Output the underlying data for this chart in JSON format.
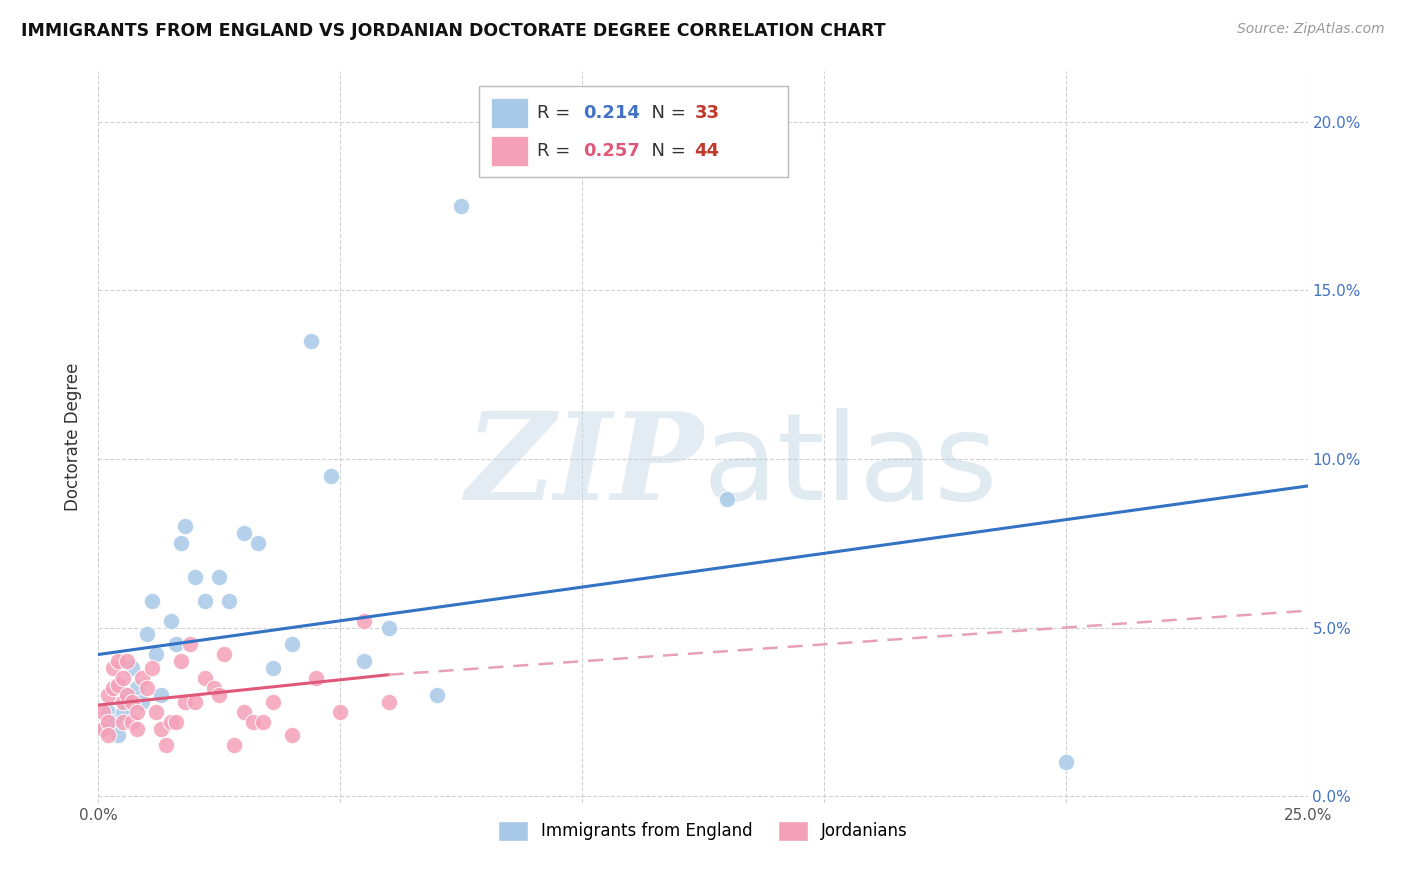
{
  "title": "IMMIGRANTS FROM ENGLAND VS JORDANIAN DOCTORATE DEGREE CORRELATION CHART",
  "source": "Source: ZipAtlas.com",
  "ylabel": "Doctorate Degree",
  "legend_label1": "Immigrants from England",
  "legend_label2": "Jordanians",
  "R1": "0.214",
  "N1": "33",
  "R2": "0.257",
  "N2": "44",
  "xlim": [
    0.0,
    0.25
  ],
  "ylim": [
    -0.002,
    0.215
  ],
  "xticks": [
    0.0,
    0.05,
    0.1,
    0.15,
    0.2,
    0.25
  ],
  "yticks": [
    0.0,
    0.05,
    0.1,
    0.15,
    0.2
  ],
  "xtick_labels": [
    "0.0%",
    "",
    "",
    "",
    "",
    "25.0%"
  ],
  "ytick_labels_right": [
    "0.0%",
    "5.0%",
    "10.0%",
    "15.0%",
    "20.0%"
  ],
  "color_blue": "#a8c8e8",
  "color_pink": "#f4a0b8",
  "color_blue_line": "#3472c4",
  "color_pink_line": "#e05878",
  "color_pink_dashed": "#e8a0b8",
  "blue_scatter_x": [
    0.001,
    0.002,
    0.003,
    0.004,
    0.005,
    0.006,
    0.007,
    0.008,
    0.009,
    0.01,
    0.011,
    0.012,
    0.013,
    0.015,
    0.016,
    0.017,
    0.018,
    0.02,
    0.022,
    0.025,
    0.027,
    0.03,
    0.033,
    0.036,
    0.04,
    0.044,
    0.048,
    0.055,
    0.06,
    0.07,
    0.13,
    0.2,
    0.075
  ],
  "blue_scatter_y": [
    0.02,
    0.025,
    0.022,
    0.018,
    0.025,
    0.03,
    0.038,
    0.032,
    0.028,
    0.048,
    0.058,
    0.042,
    0.03,
    0.052,
    0.045,
    0.075,
    0.08,
    0.065,
    0.058,
    0.065,
    0.058,
    0.078,
    0.075,
    0.038,
    0.045,
    0.135,
    0.095,
    0.04,
    0.05,
    0.03,
    0.088,
    0.01,
    0.175
  ],
  "pink_scatter_x": [
    0.001,
    0.001,
    0.002,
    0.002,
    0.002,
    0.003,
    0.003,
    0.004,
    0.004,
    0.005,
    0.005,
    0.005,
    0.006,
    0.006,
    0.007,
    0.007,
    0.008,
    0.008,
    0.009,
    0.01,
    0.011,
    0.012,
    0.013,
    0.014,
    0.015,
    0.016,
    0.018,
    0.019,
    0.02,
    0.022,
    0.024,
    0.026,
    0.028,
    0.03,
    0.032,
    0.034,
    0.036,
    0.04,
    0.045,
    0.05,
    0.055,
    0.06,
    0.025,
    0.017
  ],
  "pink_scatter_y": [
    0.025,
    0.02,
    0.022,
    0.018,
    0.03,
    0.032,
    0.038,
    0.033,
    0.04,
    0.035,
    0.028,
    0.022,
    0.03,
    0.04,
    0.028,
    0.022,
    0.025,
    0.02,
    0.035,
    0.032,
    0.038,
    0.025,
    0.02,
    0.015,
    0.022,
    0.022,
    0.028,
    0.045,
    0.028,
    0.035,
    0.032,
    0.042,
    0.015,
    0.025,
    0.022,
    0.022,
    0.028,
    0.018,
    0.035,
    0.025,
    0.052,
    0.028,
    0.03,
    0.04
  ],
  "blue_line_x": [
    0.0,
    0.25
  ],
  "blue_line_y": [
    0.042,
    0.092
  ],
  "pink_solid_line_x": [
    0.0,
    0.06
  ],
  "pink_solid_line_y": [
    0.027,
    0.036
  ],
  "pink_dashed_line_x": [
    0.06,
    0.25
  ],
  "pink_dashed_line_y": [
    0.036,
    0.055
  ]
}
